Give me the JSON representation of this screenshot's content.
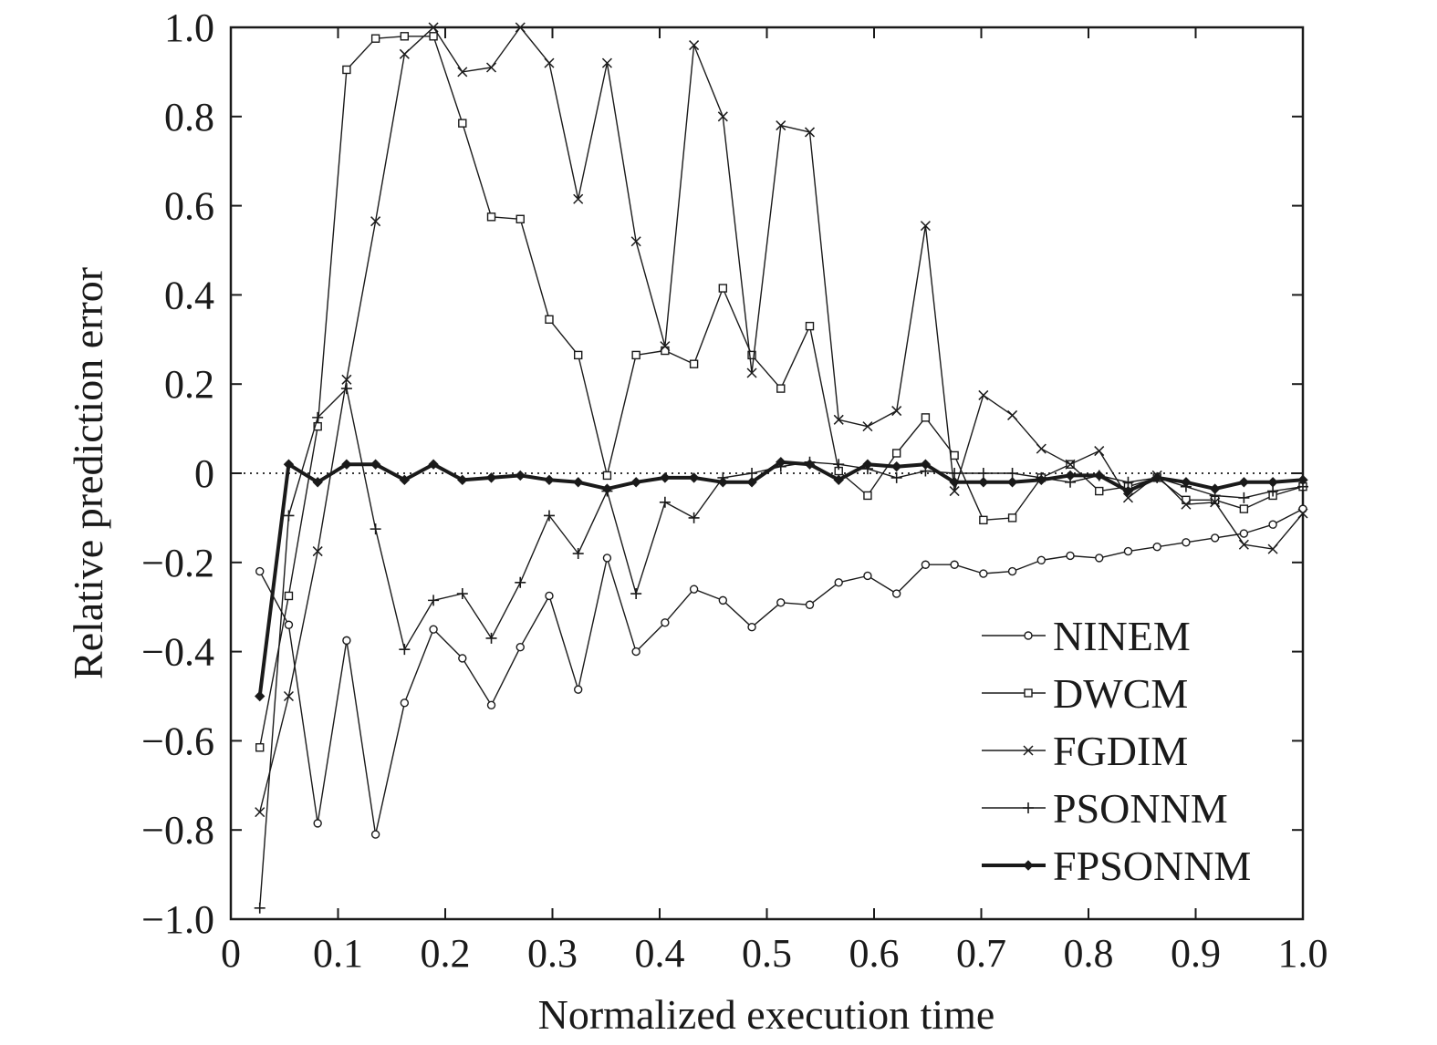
{
  "chart_data": {
    "type": "line",
    "title": "",
    "xlabel": "Normalized execution time",
    "ylabel": "Relative prediction error",
    "xlim": [
      0,
      1.0
    ],
    "ylim": [
      -1.0,
      1.0
    ],
    "xticks": [
      0,
      0.1,
      0.2,
      0.3,
      0.4,
      0.5,
      0.6,
      0.7,
      0.8,
      0.9,
      1.0
    ],
    "xtick_labels": [
      "0",
      "0.1",
      "0.2",
      "0.3",
      "0.4",
      "0.5",
      "0.6",
      "0.7",
      "0.8",
      "0.9",
      "1.0"
    ],
    "yticks": [
      -1.0,
      -0.8,
      -0.6,
      -0.4,
      -0.2,
      0,
      0.2,
      0.4,
      0.6,
      0.8,
      1.0
    ],
    "ytick_labels": [
      "−1.0",
      "−0.8",
      "−0.6",
      "−0.4",
      "−0.2",
      "0",
      "0.2",
      "0.4",
      "0.6",
      "0.8",
      "1.0"
    ],
    "grid": false,
    "zero_reference_line": "dotted",
    "legend_position": "lower-right",
    "x": [
      0.027,
      0.054,
      0.081,
      0.108,
      0.135,
      0.162,
      0.189,
      0.216,
      0.243,
      0.27,
      0.297,
      0.324,
      0.351,
      0.378,
      0.405,
      0.432,
      0.459,
      0.486,
      0.513,
      0.54,
      0.567,
      0.594,
      0.621,
      0.648,
      0.675,
      0.702,
      0.729,
      0.756,
      0.783,
      0.81,
      0.837,
      0.864,
      0.891,
      0.918,
      0.945,
      0.972,
      1.0
    ],
    "series": [
      {
        "name": "NINEM",
        "marker": "circle",
        "line_weight": "thin",
        "values": [
          -0.22,
          -0.34,
          -0.785,
          -0.375,
          -0.81,
          -0.515,
          -0.35,
          -0.415,
          -0.52,
          -0.39,
          -0.275,
          -0.485,
          -0.19,
          -0.4,
          -0.335,
          -0.26,
          -0.285,
          -0.345,
          -0.29,
          -0.295,
          -0.245,
          -0.23,
          -0.27,
          -0.205,
          -0.205,
          -0.225,
          -0.22,
          -0.195,
          -0.185,
          -0.19,
          -0.175,
          -0.165,
          -0.155,
          -0.145,
          -0.135,
          -0.115,
          -0.08
        ]
      },
      {
        "name": "DWCM",
        "marker": "square",
        "line_weight": "thin",
        "values": [
          -0.615,
          -0.275,
          0.105,
          0.905,
          0.975,
          0.98,
          0.98,
          0.785,
          0.575,
          0.57,
          0.345,
          0.265,
          -0.005,
          0.265,
          0.275,
          0.245,
          0.415,
          0.265,
          0.19,
          0.33,
          0.005,
          -0.05,
          0.045,
          0.125,
          0.04,
          -0.105,
          -0.1,
          -0.01,
          0.02,
          -0.04,
          -0.03,
          -0.01,
          -0.06,
          -0.06,
          -0.08,
          -0.05,
          -0.03
        ]
      },
      {
        "name": "FGDIM",
        "marker": "x",
        "line_weight": "thin",
        "values": [
          -0.76,
          -0.5,
          -0.175,
          0.21,
          0.565,
          0.94,
          1.0,
          0.9,
          0.91,
          1.0,
          0.92,
          0.615,
          0.92,
          0.52,
          0.285,
          0.96,
          0.8,
          0.225,
          0.78,
          0.765,
          0.12,
          0.105,
          0.14,
          0.555,
          -0.04,
          0.175,
          0.13,
          0.055,
          0.02,
          0.05,
          -0.055,
          -0.005,
          -0.07,
          -0.065,
          -0.16,
          -0.17,
          -0.09
        ]
      },
      {
        "name": "PSONNM",
        "marker": "plus",
        "line_weight": "thin",
        "values": [
          -0.975,
          -0.095,
          0.125,
          0.19,
          -0.125,
          -0.395,
          -0.285,
          -0.27,
          -0.37,
          -0.245,
          -0.095,
          -0.18,
          -0.04,
          -0.27,
          -0.065,
          -0.1,
          -0.01,
          0.0,
          0.015,
          0.025,
          0.02,
          0.01,
          -0.01,
          0.005,
          0.0,
          0.0,
          0.0,
          -0.01,
          -0.02,
          -0.005,
          -0.02,
          -0.01,
          -0.03,
          -0.05,
          -0.055,
          -0.04,
          -0.03
        ]
      },
      {
        "name": "FPSONNM",
        "marker": "diamond",
        "line_weight": "bold",
        "values": [
          -0.5,
          0.02,
          -0.02,
          0.02,
          0.02,
          -0.015,
          0.02,
          -0.015,
          -0.01,
          -0.005,
          -0.015,
          -0.02,
          -0.035,
          -0.02,
          -0.01,
          -0.01,
          -0.02,
          -0.02,
          0.025,
          0.02,
          -0.015,
          0.02,
          0.015,
          0.02,
          -0.02,
          -0.02,
          -0.02,
          -0.015,
          -0.005,
          -0.005,
          -0.04,
          -0.01,
          -0.02,
          -0.035,
          -0.02,
          -0.02,
          -0.015
        ]
      }
    ]
  }
}
